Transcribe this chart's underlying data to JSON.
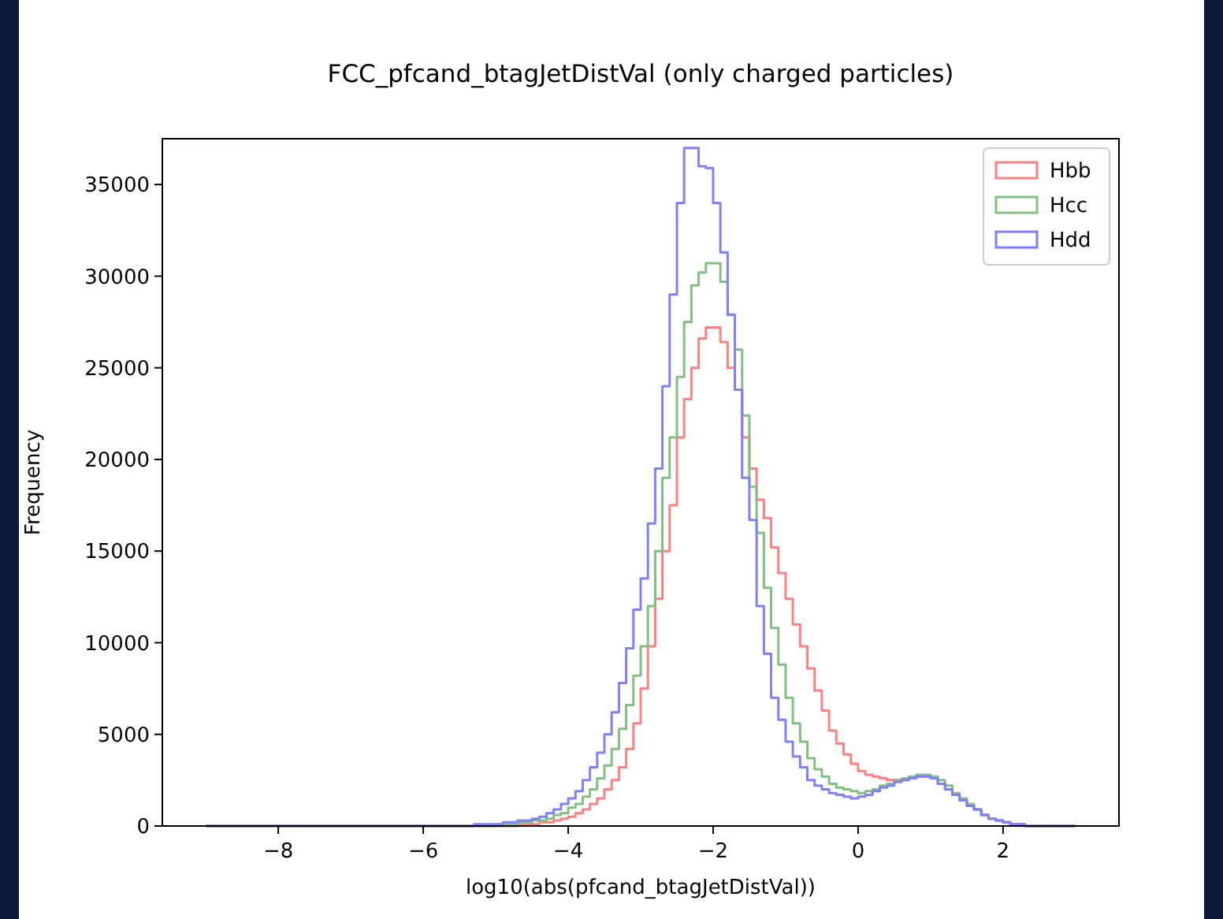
{
  "chart_data": {
    "type": "histogram",
    "title": "FCC_pfcand_btagJetDistVal (only charged particles)",
    "xlabel": "log10(abs(pfcand_btagJetDistVal))",
    "ylabel": "Frequency",
    "bins": [
      -9.0,
      -8.9,
      -8.8,
      -8.7,
      -8.6,
      -8.5,
      -8.4,
      -8.3,
      -8.2,
      -8.1,
      -8.0,
      -7.9,
      -7.8,
      -7.7,
      -7.6,
      -7.5,
      -7.4,
      -7.3,
      -7.2,
      -7.1,
      -7.0,
      -6.9,
      -6.8,
      -6.7,
      -6.6,
      -6.5,
      -6.4,
      -6.3,
      -6.2,
      -6.1,
      -6.0,
      -5.9,
      -5.8,
      -5.7,
      -5.6,
      -5.5,
      -5.4,
      -5.3,
      -5.2,
      -5.1,
      -5.0,
      -4.9,
      -4.8,
      -4.7,
      -4.6,
      -4.5,
      -4.4,
      -4.3,
      -4.2,
      -4.1,
      -4.0,
      -3.9,
      -3.8,
      -3.7,
      -3.6,
      -3.5,
      -3.4,
      -3.3,
      -3.2,
      -3.1,
      -3.0,
      -2.9,
      -2.8,
      -2.7,
      -2.6,
      -2.5,
      -2.4,
      -2.3,
      -2.2,
      -2.1,
      -2.0,
      -1.9,
      -1.8,
      -1.7,
      -1.6,
      -1.5,
      -1.4,
      -1.3,
      -1.2,
      -1.1,
      -1.0,
      -0.9,
      -0.8,
      -0.7,
      -0.6,
      -0.5,
      -0.4,
      -0.3,
      -0.2,
      -0.1,
      0.0,
      0.1,
      0.2,
      0.3,
      0.4,
      0.5,
      0.6,
      0.7,
      0.8,
      0.9,
      1.0,
      1.1,
      1.2,
      1.3,
      1.4,
      1.5,
      1.6,
      1.7,
      1.8,
      1.9,
      2.0,
      2.1,
      2.2,
      2.3,
      2.4,
      2.5,
      2.6,
      2.7,
      2.8,
      2.9,
      3.0
    ],
    "series": [
      {
        "name": "Hbb",
        "color": "#ff8080",
        "values": [
          0,
          0,
          0,
          0,
          0,
          0,
          0,
          0,
          0,
          0,
          0,
          0,
          0,
          0,
          0,
          0,
          0,
          0,
          0,
          0,
          0,
          0,
          0,
          0,
          0,
          0,
          0,
          0,
          0,
          0,
          0,
          0,
          0,
          0,
          0,
          0,
          0,
          0,
          0,
          0,
          0,
          0,
          0,
          100,
          100,
          100,
          200,
          200,
          300,
          400,
          500,
          700,
          900,
          1200,
          1500,
          2000,
          2500,
          3200,
          4200,
          5600,
          7500,
          9800,
          12400,
          15000,
          17500,
          21200,
          23300,
          25000,
          26600,
          27200,
          27200,
          26400,
          25000,
          23800,
          21200,
          19500,
          17800,
          16800,
          15200,
          13800,
          12400,
          11000,
          9800,
          8600,
          7400,
          6300,
          5200,
          4500,
          3900,
          3400,
          3000,
          2800,
          2700,
          2600,
          2500,
          2500,
          2500,
          2600,
          2700,
          2700,
          2600,
          2300,
          2000,
          1700,
          1400,
          1100,
          900,
          600,
          400,
          300,
          200,
          100,
          100,
          0,
          0,
          0,
          0,
          0,
          0,
          0
        ]
      },
      {
        "name": "Hcc",
        "color": "#80c080",
        "values": [
          0,
          0,
          0,
          0,
          0,
          0,
          0,
          0,
          0,
          0,
          0,
          0,
          0,
          0,
          0,
          0,
          0,
          0,
          0,
          0,
          0,
          0,
          0,
          0,
          0,
          0,
          0,
          0,
          0,
          0,
          0,
          0,
          0,
          0,
          0,
          0,
          0,
          0,
          0,
          0,
          100,
          100,
          100,
          200,
          200,
          300,
          300,
          400,
          600,
          700,
          1000,
          1200,
          1600,
          2000,
          2600,
          3300,
          4200,
          5300,
          6600,
          8200,
          9800,
          12000,
          15000,
          19000,
          21200,
          24500,
          27500,
          29500,
          30200,
          30700,
          30700,
          29700,
          27900,
          26000,
          22400,
          18500,
          16000,
          13000,
          10800,
          8800,
          7000,
          5600,
          4600,
          3700,
          3100,
          2700,
          2300,
          2100,
          2000,
          1900,
          1800,
          1900,
          2000,
          2200,
          2300,
          2500,
          2600,
          2700,
          2800,
          2800,
          2700,
          2500,
          2200,
          1800,
          1500,
          1200,
          900,
          600,
          400,
          300,
          200,
          100,
          100,
          0,
          0,
          0,
          0,
          0,
          0,
          0
        ]
      },
      {
        "name": "Hdd",
        "color": "#8080ff",
        "values": [
          0,
          0,
          0,
          0,
          0,
          0,
          0,
          0,
          0,
          0,
          0,
          0,
          0,
          0,
          0,
          0,
          0,
          0,
          0,
          0,
          0,
          0,
          0,
          0,
          0,
          0,
          0,
          0,
          0,
          0,
          0,
          0,
          0,
          0,
          0,
          0,
          0,
          100,
          100,
          100,
          100,
          200,
          200,
          300,
          300,
          400,
          500,
          700,
          900,
          1200,
          1500,
          1900,
          2500,
          3200,
          4000,
          5000,
          6200,
          7800,
          9700,
          11800,
          13500,
          16500,
          19500,
          24000,
          29000,
          34000,
          37000,
          37000,
          36000,
          35900,
          34000,
          31300,
          27900,
          23800,
          19000,
          16700,
          12000,
          9400,
          7000,
          5800,
          4600,
          3800,
          3200,
          2500,
          2200,
          2000,
          1800,
          1700,
          1600,
          1500,
          1600,
          1700,
          1900,
          2100,
          2200,
          2400,
          2500,
          2600,
          2700,
          2700,
          2600,
          2300,
          2000,
          1700,
          1400,
          1100,
          900,
          600,
          400,
          300,
          200,
          100,
          100,
          0,
          0,
          0,
          0,
          0,
          0,
          0
        ]
      }
    ],
    "xlim": [
      -9.6,
      3.6
    ],
    "ylim": [
      0,
      37500
    ],
    "xticks": [
      {
        "value": -8,
        "label": "−8"
      },
      {
        "value": -6,
        "label": "−6"
      },
      {
        "value": -4,
        "label": "−4"
      },
      {
        "value": -2,
        "label": "−2"
      },
      0,
      2
    ],
    "yticks": [
      0,
      5000,
      10000,
      15000,
      20000,
      25000,
      30000,
      35000
    ],
    "legend": "top right"
  }
}
